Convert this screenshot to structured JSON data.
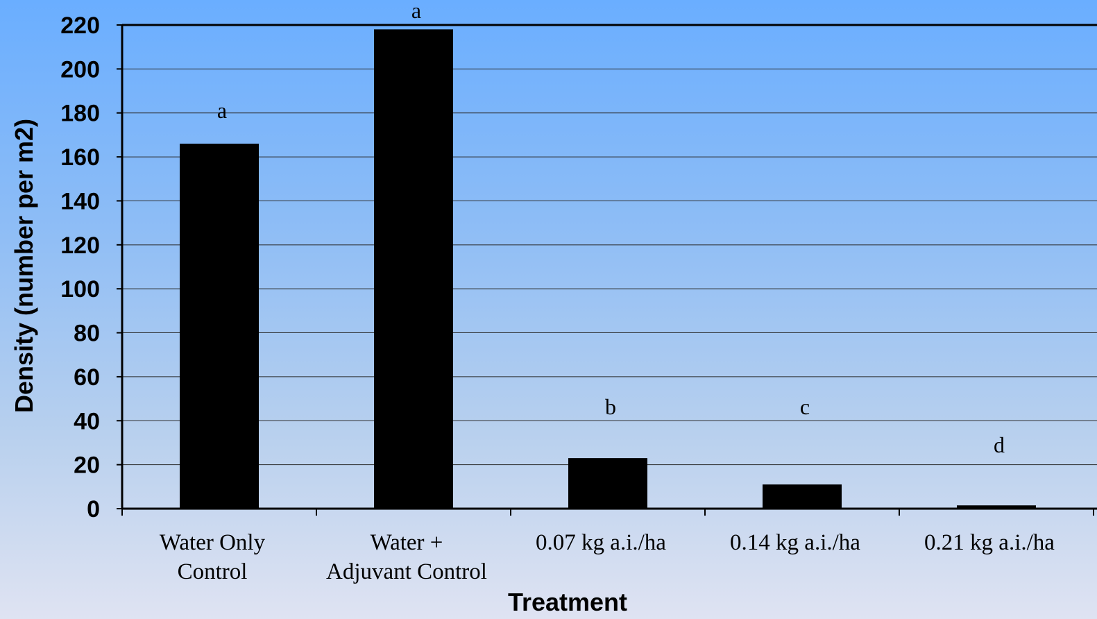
{
  "chart_data": {
    "type": "bar",
    "title": "",
    "xlabel": "Treatment",
    "ylabel": "Density (number per m2)",
    "ylim": [
      0,
      220
    ],
    "yticks": [
      0,
      20,
      40,
      60,
      80,
      100,
      120,
      140,
      160,
      180,
      200,
      220
    ],
    "grid": true,
    "categories": [
      [
        "Water Only",
        "Control"
      ],
      [
        "Water +",
        "Adjuvant Control"
      ],
      [
        "0.07 kg a.i./ha"
      ],
      [
        "0.14 kg a.i./ha"
      ],
      [
        "0.21 kg a.i./ha"
      ]
    ],
    "values": [
      166,
      218,
      23,
      11,
      1.5
    ],
    "labels": [
      "a",
      "a",
      "b",
      "c",
      "d"
    ],
    "bar_color": "#000000"
  }
}
